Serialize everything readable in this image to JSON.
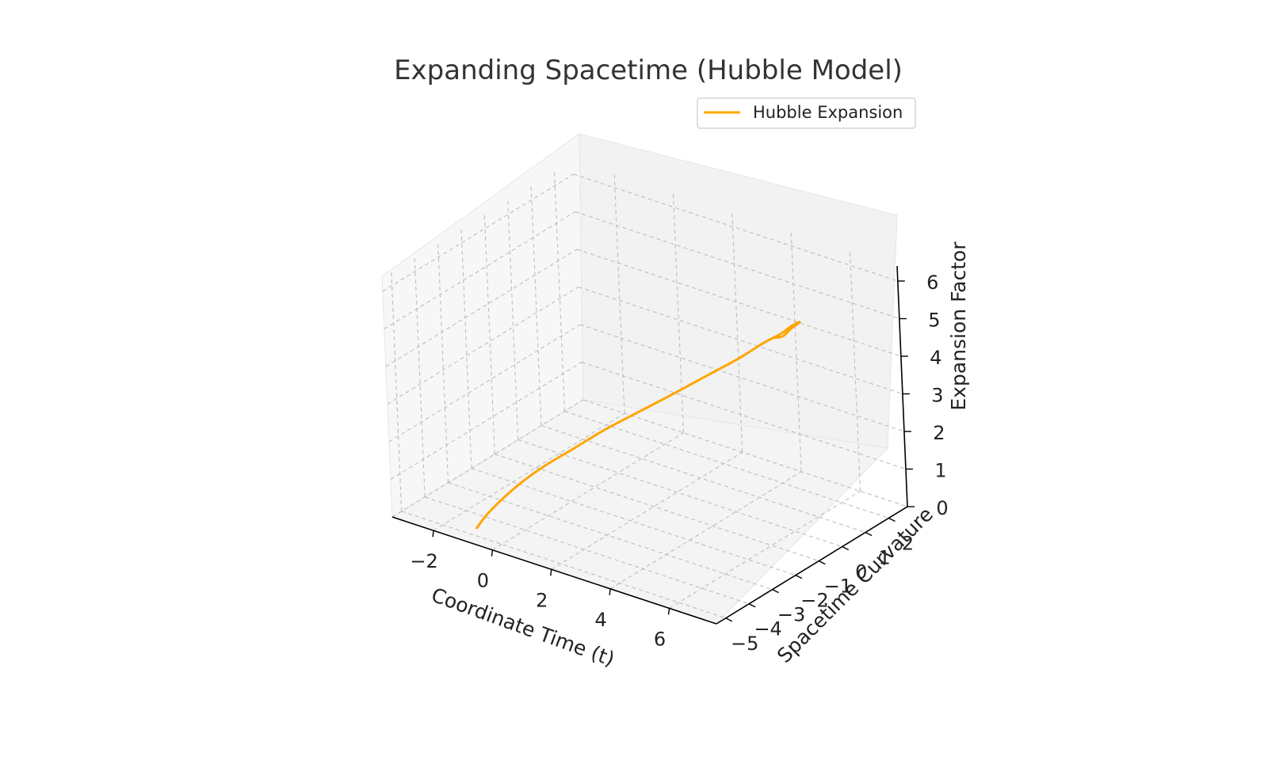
{
  "chart_data": {
    "type": "line",
    "title": "Expanding Spacetime (Hubble Model)",
    "xlabel": "Coordinate Time (t)",
    "ylabel": "Spacetime Curvature",
    "zlabel": "Expansion Factor",
    "xlim": [
      -3.4,
      7.6
    ],
    "ylim": [
      -5.4,
      2.8
    ],
    "zlim": [
      0,
      6.4
    ],
    "xticks": [
      -2,
      0,
      2,
      4,
      6
    ],
    "yticks": [
      -5,
      -4,
      -3,
      -2,
      -1,
      0,
      1,
      2
    ],
    "zticks": [
      0,
      1,
      2,
      3,
      4,
      5,
      6
    ],
    "grid": true,
    "legend_position": "top-right",
    "series": [
      {
        "name": "Hubble Expansion",
        "color": "#FFA500",
        "x": [
          -1.0,
          -0.9,
          -0.7,
          -0.4,
          0.0,
          0.5,
          1.0,
          1.6,
          2.2,
          2.7,
          3.2,
          3.6,
          4.0,
          4.3,
          4.6,
          4.9,
          5.2,
          5.5,
          5.8,
          6.0,
          6.2
        ],
        "y": [
          -4.8,
          -4.5,
          -4.1,
          -3.6,
          -3.1,
          -2.5,
          -1.7,
          -0.9,
          -0.1,
          0.7,
          1.4,
          1.9,
          2.2,
          2.3,
          2.2,
          1.9,
          1.4,
          0.8,
          0.1,
          -0.4,
          -0.8
        ],
        "z": [
          0.1,
          0.35,
          0.65,
          1.0,
          1.35,
          1.7,
          2.05,
          2.4,
          2.75,
          3.05,
          3.35,
          3.65,
          3.9,
          4.15,
          4.35,
          4.55,
          4.75,
          4.95,
          5.1,
          5.3,
          5.5
        ]
      }
    ]
  }
}
